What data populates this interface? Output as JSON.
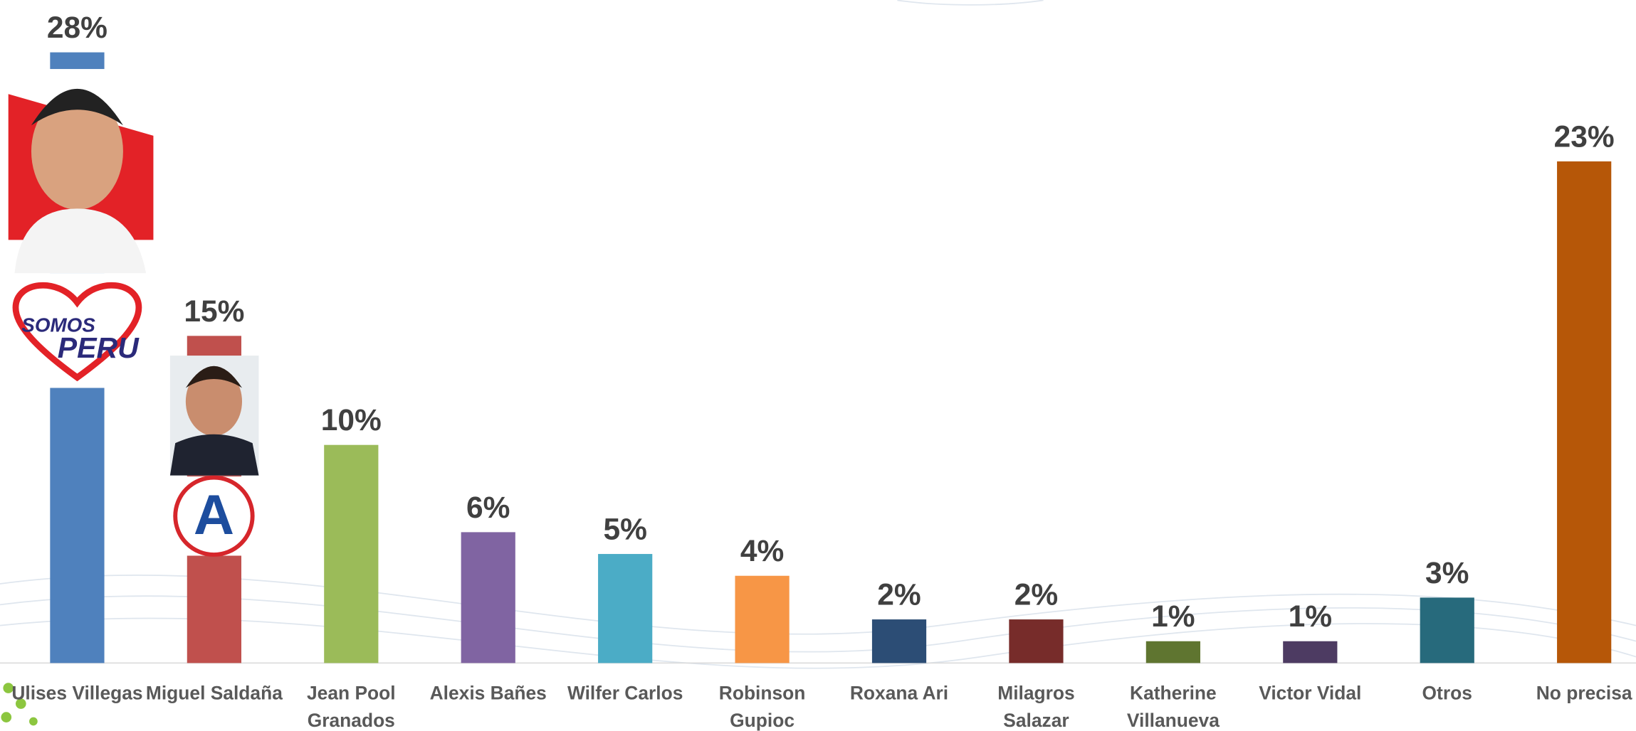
{
  "chart_data": {
    "type": "bar",
    "categories": [
      "Ulises Villegas",
      "Miguel Saldaña",
      "Jean Pool Granados",
      "Alexis Bañes",
      "Wilfer Carlos",
      "Robinson Gupioc",
      "Roxana Ari",
      "Milagros Salazar",
      "Katherine Villanueva",
      "Victor Vidal",
      "Otros",
      "No precisa"
    ],
    "values": [
      28,
      15,
      10,
      6,
      5,
      4,
      2,
      2,
      1,
      1,
      3,
      23
    ],
    "value_labels": [
      "28%",
      "15%",
      "10%",
      "6%",
      "5%",
      "4%",
      "2%",
      "2%",
      "1%",
      "1%",
      "3%",
      "23%"
    ],
    "colors": [
      "#4f81bd",
      "#c0504d",
      "#9bbb59",
      "#8064a2",
      "#4bacc6",
      "#f79646",
      "#2c4d75",
      "#772c2a",
      "#5f7530",
      "#4d3b62",
      "#276a7c",
      "#b65708"
    ],
    "annotations": {
      "somos_peru_logo": [
        "SOMOS",
        "PERU"
      ],
      "ap_logo": "A"
    }
  }
}
